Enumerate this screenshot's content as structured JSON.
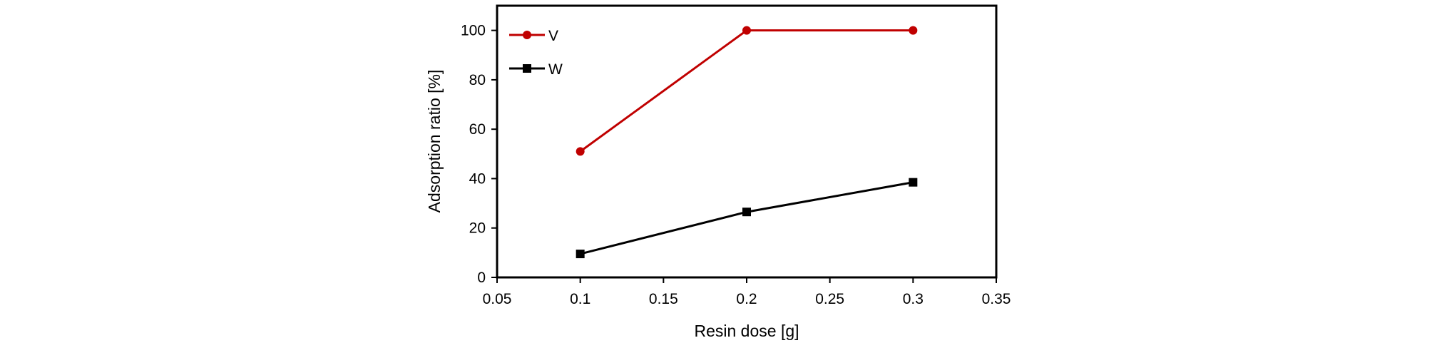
{
  "chart_data": {
    "type": "line",
    "title": "",
    "xlabel": "Resin dose [g]",
    "ylabel": "Adsorption ratio [%]",
    "xlim": [
      0.05,
      0.35
    ],
    "ylim": [
      0,
      110
    ],
    "x_ticks": [
      "0.05",
      "0.1",
      "0.15",
      "0.2",
      "0.25",
      "0.3",
      "0.35"
    ],
    "y_ticks": [
      "0",
      "20",
      "40",
      "60",
      "80",
      "100"
    ],
    "x_tick_values": [
      0.05,
      0.1,
      0.15,
      0.2,
      0.25,
      0.3,
      0.35
    ],
    "y_tick_values": [
      0,
      20,
      40,
      60,
      80,
      100
    ],
    "grid": false,
    "legend_position": "top-left",
    "series": [
      {
        "name": "V",
        "x": [
          0.1,
          0.2,
          0.3
        ],
        "values": [
          51,
          100,
          100
        ],
        "color": "#c00000",
        "marker": "circle"
      },
      {
        "name": "W",
        "x": [
          0.1,
          0.2,
          0.3
        ],
        "values": [
          9.5,
          26.5,
          38.5
        ],
        "color": "#000000",
        "marker": "square"
      }
    ]
  }
}
